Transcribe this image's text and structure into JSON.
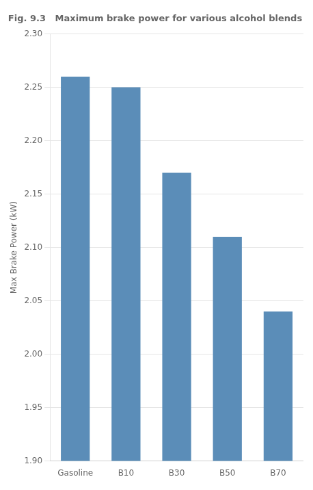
{
  "chart_data": {
    "type": "bar",
    "title": "Fig. 9.3   Maximum brake power for various alcohol blends",
    "categories": [
      "Gasoline",
      "B10",
      "B30",
      "B50",
      "B70"
    ],
    "values": [
      2.26,
      2.25,
      2.17,
      2.11,
      2.04
    ],
    "color": "#5B8DB8",
    "ylabel": "Max Brake Power (kW)",
    "ylim": [
      1.9,
      2.3
    ],
    "yticks": [
      {
        "value": 1.9,
        "label": "1.90"
      },
      {
        "value": 1.95,
        "label": "1.95"
      },
      {
        "value": 2.0,
        "label": "2.00"
      },
      {
        "value": 2.05,
        "label": "2.05"
      },
      {
        "value": 2.1,
        "label": "2.10"
      },
      {
        "value": 2.15,
        "label": "2.15"
      },
      {
        "value": 2.2,
        "label": "2.20"
      },
      {
        "value": 2.25,
        "label": "2.25"
      },
      {
        "value": 2.3,
        "label": "2.30"
      }
    ],
    "grid": true
  }
}
